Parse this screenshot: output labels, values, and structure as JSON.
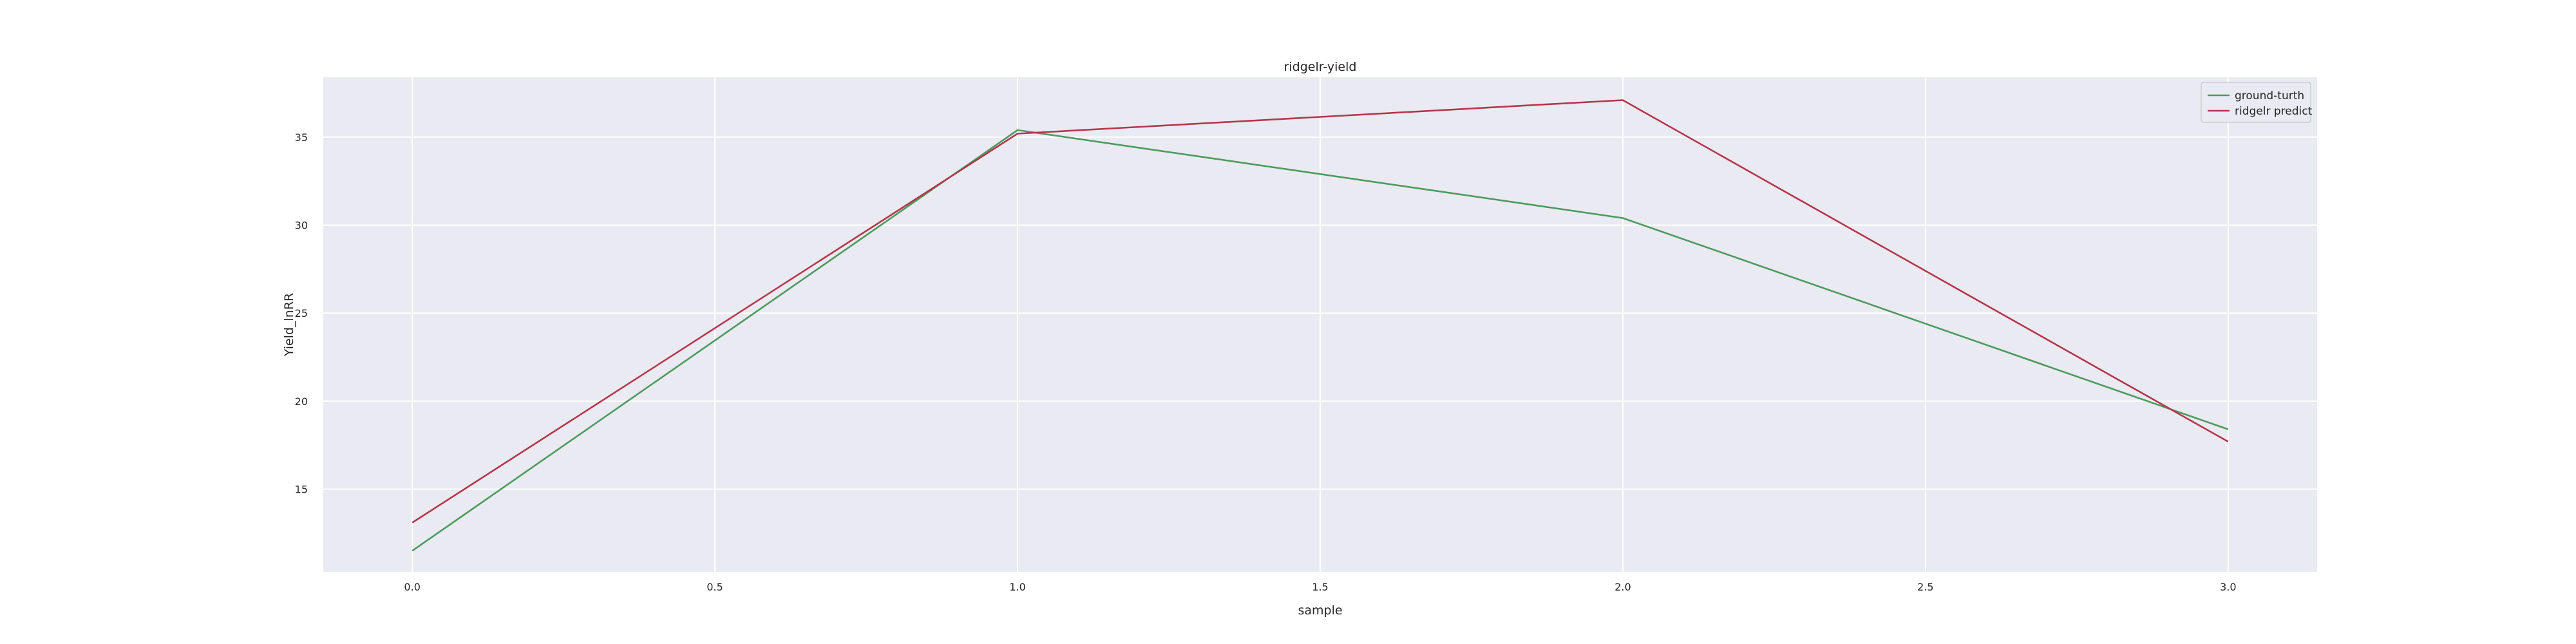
{
  "chart_data": {
    "type": "line",
    "title": "ridgelr-yield",
    "xlabel": "sample",
    "ylabel": "Yield_lnRR",
    "x": [
      0,
      1,
      2,
      3
    ],
    "series": [
      {
        "name": "ground-turth",
        "color": "#4c9a5e",
        "values": [
          11.5,
          35.4,
          30.4,
          18.4
        ]
      },
      {
        "name": "ridgelr predict",
        "color": "#b5364a",
        "values": [
          13.1,
          35.2,
          37.1,
          17.7
        ]
      }
    ],
    "xlim": [
      -0.147,
      3.147
    ],
    "ylim": [
      10.3,
      38.4
    ],
    "xticks": [
      "0.0",
      "0.5",
      "1.0",
      "1.5",
      "2.0",
      "2.5",
      "3.0"
    ],
    "yticks": [
      "15",
      "20",
      "25",
      "30",
      "35"
    ],
    "grid": true,
    "legend_position": "top-right",
    "background_color": "#eaeaf2",
    "grid_color": "#ffffff"
  }
}
